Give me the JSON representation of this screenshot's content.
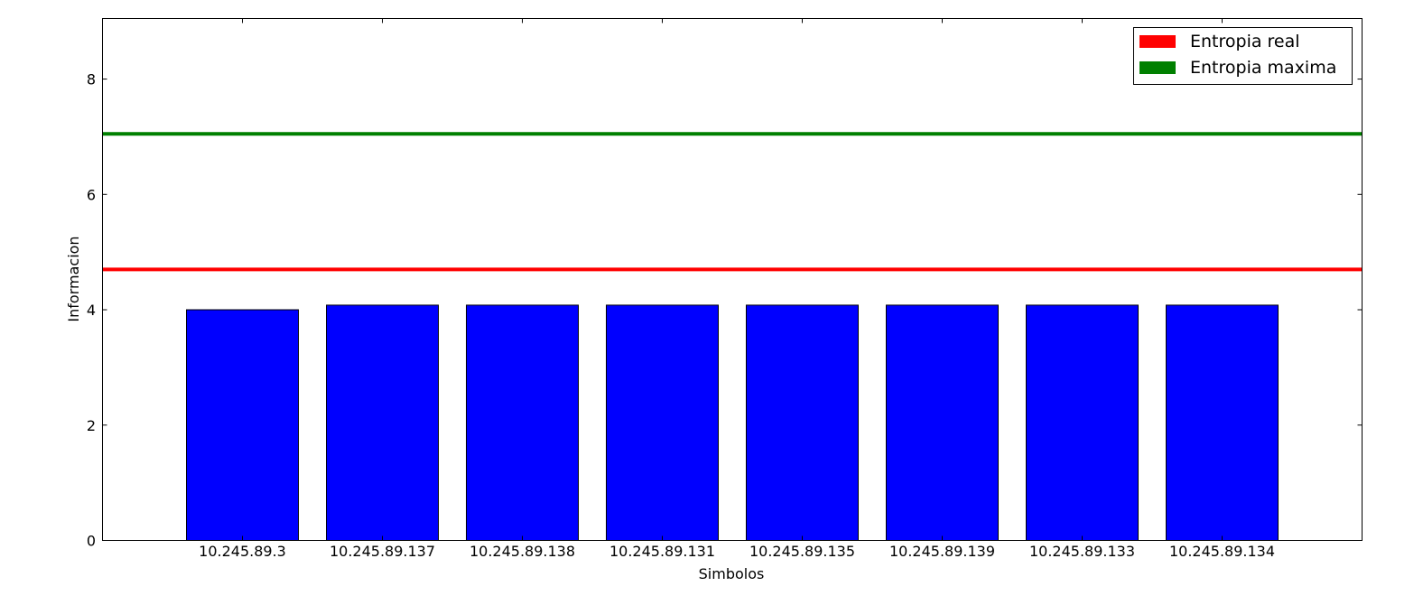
{
  "chart_data": {
    "type": "bar",
    "categories": [
      "10.245.89.3",
      "10.245.89.137",
      "10.245.89.138",
      "10.245.89.131",
      "10.245.89.135",
      "10.245.89.139",
      "10.245.89.133",
      "10.245.89.134"
    ],
    "values": [
      4.0,
      4.08,
      4.08,
      4.08,
      4.08,
      4.08,
      4.08,
      4.08
    ],
    "bar_color": "#0000ff",
    "xlabel": "Simbolos",
    "ylabel": "Informacion",
    "ylim": [
      0,
      9.05
    ],
    "yticks": [
      0,
      2,
      4,
      6,
      8
    ],
    "grid": false,
    "reference_lines": [
      {
        "name": "Entropia real",
        "y": 4.7,
        "color": "#ff0000"
      },
      {
        "name": "Entropia maxima",
        "y": 7.05,
        "color": "#008000"
      }
    ],
    "legend": {
      "position": "top-right",
      "entries": [
        {
          "label": "Entropia real",
          "color": "#ff0000"
        },
        {
          "label": "Entropia maxima",
          "color": "#008000"
        }
      ]
    }
  }
}
